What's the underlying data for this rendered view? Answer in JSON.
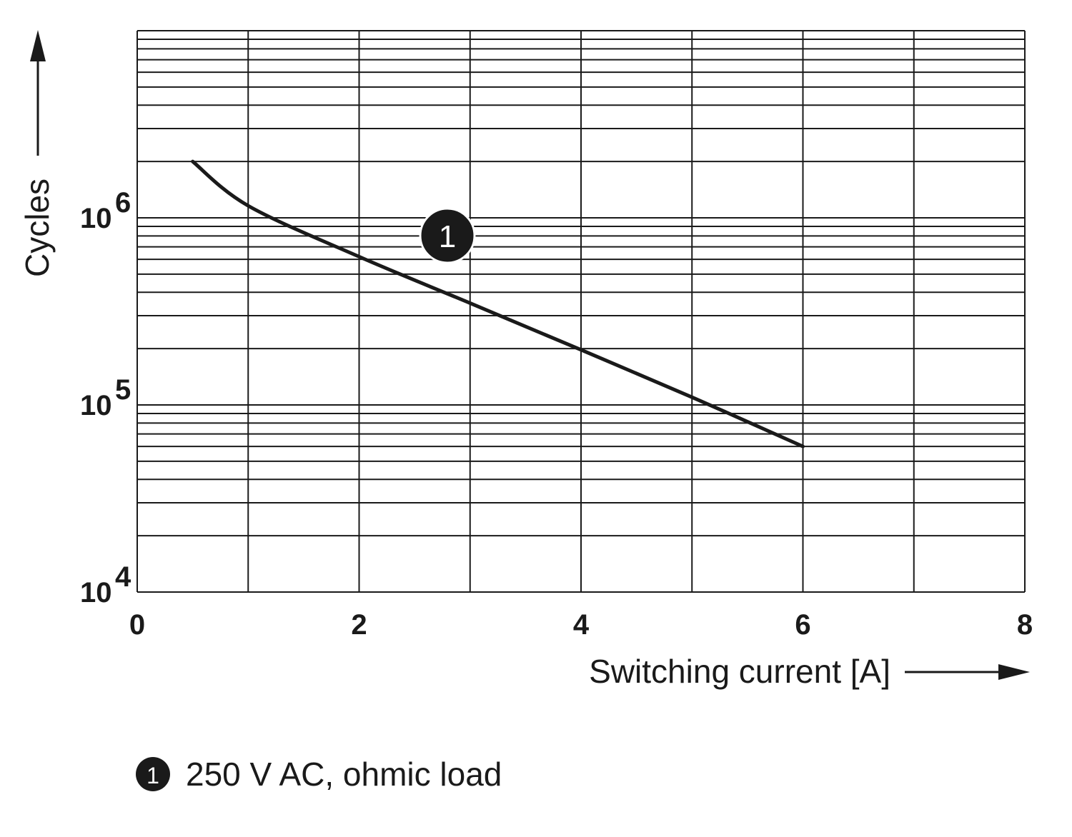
{
  "chart_data": {
    "type": "line",
    "xlabel": "Switching current [A]",
    "ylabel": "Cycles",
    "xlim": [
      0,
      8
    ],
    "ylim": [
      10000,
      10000000
    ],
    "yscale": "log",
    "grid": true,
    "x_ticks": [
      "0",
      "2",
      "4",
      "6",
      "8"
    ],
    "y_ticks": [
      {
        "base": "10",
        "exp": "4",
        "value": 10000
      },
      {
        "base": "10",
        "exp": "5",
        "value": 100000
      },
      {
        "base": "10",
        "exp": "6",
        "value": 1000000
      }
    ],
    "series": [
      {
        "marker_label": "1",
        "x": [
          0.5,
          1,
          2,
          3,
          4,
          5,
          6
        ],
        "y": [
          2000000,
          1160000,
          620000,
          350000,
          197000,
          110000,
          60000
        ]
      }
    ],
    "legend": [
      {
        "marker": "1",
        "text": "250 V AC, ohmic load"
      }
    ],
    "colors": {
      "line": "#1a1a1a",
      "grid": "#1a1a1a",
      "background": "#ffffff"
    }
  }
}
